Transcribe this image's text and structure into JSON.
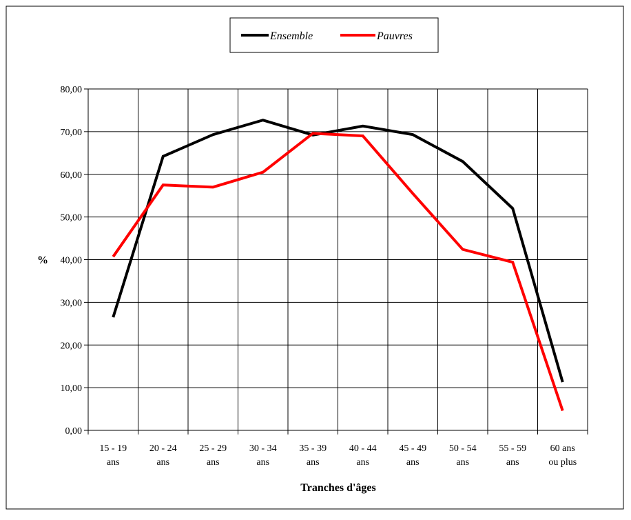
{
  "chart_data": {
    "type": "line",
    "xlabel": "Tranches d'âges",
    "ylabel": "%",
    "ylim": [
      0,
      80
    ],
    "yticks": [
      "0,00",
      "10,00",
      "20,00",
      "30,00",
      "40,00",
      "50,00",
      "60,00",
      "70,00",
      "80,00"
    ],
    "grid": true,
    "legend_position": "top-center",
    "categories": [
      [
        "15 - 19",
        "ans"
      ],
      [
        "20 - 24",
        "ans"
      ],
      [
        "25 - 29",
        "ans"
      ],
      [
        "30 - 34",
        "ans"
      ],
      [
        "35 - 39",
        "ans"
      ],
      [
        "40 - 44",
        "ans"
      ],
      [
        "45 - 49",
        "ans"
      ],
      [
        "50 - 54",
        "ans"
      ],
      [
        "55 - 59",
        "ans"
      ],
      [
        "60 ans",
        "ou plus"
      ]
    ],
    "series": [
      {
        "name": "Ensemble",
        "color": "#000000",
        "values": [
          26.5,
          64.2,
          69.3,
          72.7,
          69.2,
          71.3,
          69.3,
          63.0,
          52.0,
          11.3
        ]
      },
      {
        "name": "Pauvres",
        "color": "#ff0000",
        "values": [
          40.7,
          57.5,
          57.0,
          60.5,
          69.6,
          69.0,
          55.5,
          42.4,
          39.4,
          4.6
        ]
      }
    ]
  }
}
